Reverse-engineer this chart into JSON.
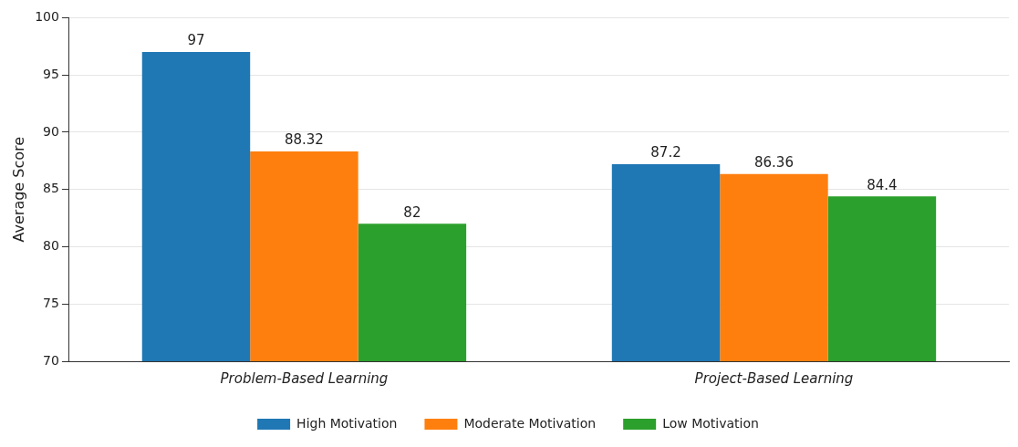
{
  "chart_data": {
    "type": "bar",
    "ylabel": "Average Score",
    "categories": [
      "Problem-Based Learning",
      "Project-Based Learning"
    ],
    "series": [
      {
        "name": "High Motivation",
        "color": "#1f77b4",
        "values": [
          97,
          87.2
        ]
      },
      {
        "name": "Moderate Motivation",
        "color": "#ff7f0e",
        "values": [
          88.32,
          86.36
        ]
      },
      {
        "name": "Low Motivation",
        "color": "#2ca02c",
        "values": [
          82,
          84.4
        ]
      }
    ],
    "ylim": [
      70,
      100
    ],
    "yticks": [
      70,
      75,
      80,
      85,
      90,
      95,
      100
    ],
    "grid": "y",
    "legend": "bottom",
    "data_labels": true
  }
}
